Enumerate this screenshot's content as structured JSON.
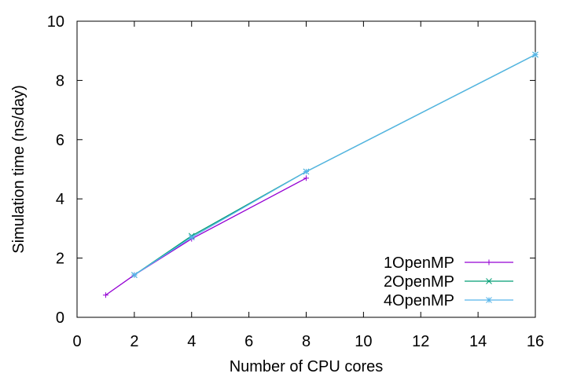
{
  "chart_data": {
    "type": "line",
    "xlabel": "Number of CPU cores",
    "ylabel": "Simulation time (ns/day)",
    "xlim": [
      0,
      16
    ],
    "ylim": [
      0,
      10
    ],
    "xticks": [
      "0",
      "2",
      "4",
      "6",
      "8",
      "10",
      "12",
      "14",
      "16"
    ],
    "yticks": [
      "0",
      "2",
      "4",
      "6",
      "8",
      "10"
    ],
    "grid": false,
    "legend_position": "bottom-right",
    "series": [
      {
        "name": "1OpenMP",
        "color": "#9400d3",
        "marker": "plus",
        "x": [
          1,
          2,
          4,
          8
        ],
        "y": [
          0.75,
          1.43,
          2.65,
          4.7
        ]
      },
      {
        "name": "2OpenMP",
        "color": "#009e73",
        "marker": "cross",
        "x": [
          2,
          4,
          8,
          16
        ],
        "y": [
          1.43,
          2.75,
          4.92,
          8.87
        ]
      },
      {
        "name": "4OpenMP",
        "color": "#56b4e9",
        "marker": "asterisk",
        "x": [
          2,
          4,
          8,
          16
        ],
        "y": [
          1.43,
          2.7,
          4.92,
          8.87
        ]
      }
    ]
  }
}
